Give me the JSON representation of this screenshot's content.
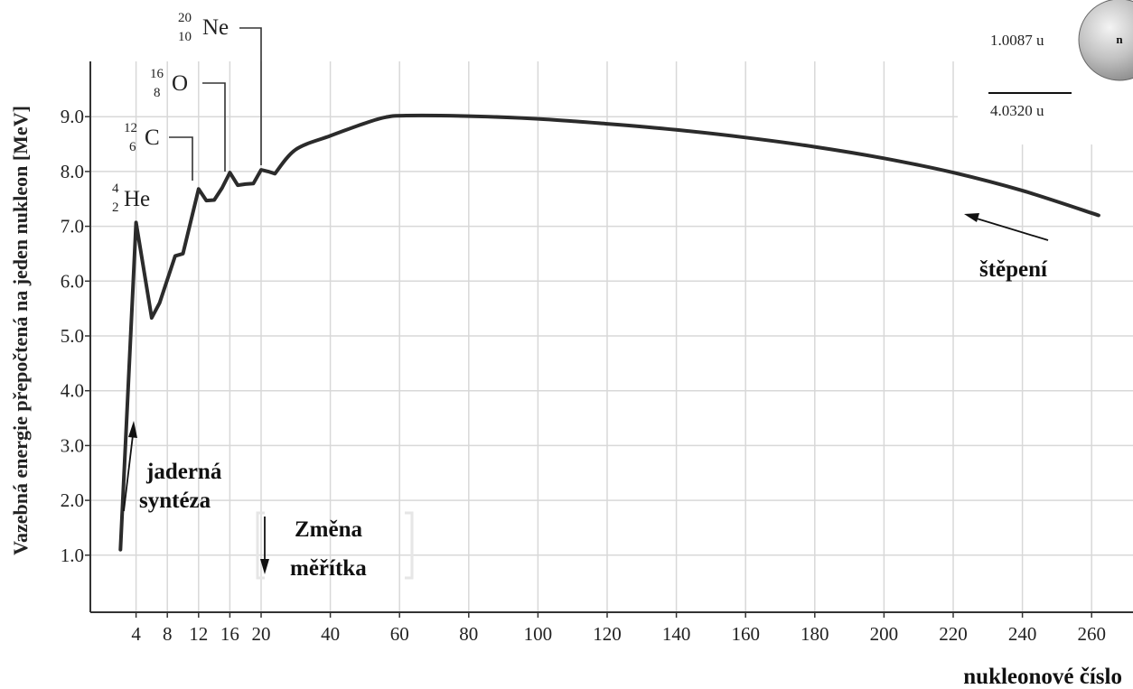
{
  "chart_data": {
    "type": "line",
    "title": "",
    "ylabel": "Vazebná energie přepočtená na jeden nukleon [MeV]",
    "xlabel": "nukleonové číslo",
    "ylim": [
      0,
      10
    ],
    "yticks": [
      "1.0",
      "2.0",
      "3.0",
      "4.0",
      "5.0",
      "6.0",
      "7.0",
      "8.0",
      "9.0"
    ],
    "xticks": [
      "4",
      "8",
      "12",
      "16",
      "20",
      "40",
      "60",
      "80",
      "100",
      "120",
      "140",
      "160",
      "180",
      "200",
      "220",
      "240",
      "260"
    ],
    "x_scale_note": "axis scale changes at A = 20",
    "grid": true,
    "series": [
      {
        "points": [
          [
            2,
            1.1
          ],
          [
            4,
            7.07
          ],
          [
            6,
            5.33
          ],
          [
            7,
            5.6
          ],
          [
            9,
            6.46
          ],
          [
            10,
            6.5
          ],
          [
            12,
            7.68
          ],
          [
            13,
            7.47
          ],
          [
            14,
            7.48
          ],
          [
            15,
            7.7
          ],
          [
            16,
            7.98
          ],
          [
            17,
            7.75
          ],
          [
            18,
            7.77
          ],
          [
            19,
            7.78
          ],
          [
            20,
            8.03
          ],
          [
            22,
            8.0
          ],
          [
            24,
            7.96
          ],
          [
            30,
            8.4
          ],
          [
            40,
            8.65
          ],
          [
            50,
            8.88
          ],
          [
            56,
            8.99
          ],
          [
            62,
            9.02
          ],
          [
            80,
            9.01
          ],
          [
            100,
            8.96
          ],
          [
            120,
            8.87
          ],
          [
            140,
            8.76
          ],
          [
            160,
            8.62
          ],
          [
            180,
            8.45
          ],
          [
            200,
            8.24
          ],
          [
            220,
            7.98
          ],
          [
            240,
            7.65
          ],
          [
            262,
            7.2
          ]
        ]
      }
    ]
  },
  "labels": {
    "he": {
      "symbol": "He",
      "mass": "4",
      "atomic": "2"
    },
    "c": {
      "symbol": "C",
      "mass": "12",
      "atomic": "6"
    },
    "o": {
      "symbol": "O",
      "mass": "16",
      "atomic": "8"
    },
    "ne": {
      "symbol": "Ne",
      "mass": "20",
      "atomic": "10"
    }
  },
  "annotations": {
    "fusion_line1": "jaderná",
    "fusion_line2": "syntéza",
    "scale_line1": "Změna",
    "scale_line2": "měřítka",
    "fission": "štěpení"
  },
  "inset": {
    "neutron_mass": "1.0087 u",
    "total_mass": "4.0320 u",
    "neutron_symbol": "n"
  }
}
